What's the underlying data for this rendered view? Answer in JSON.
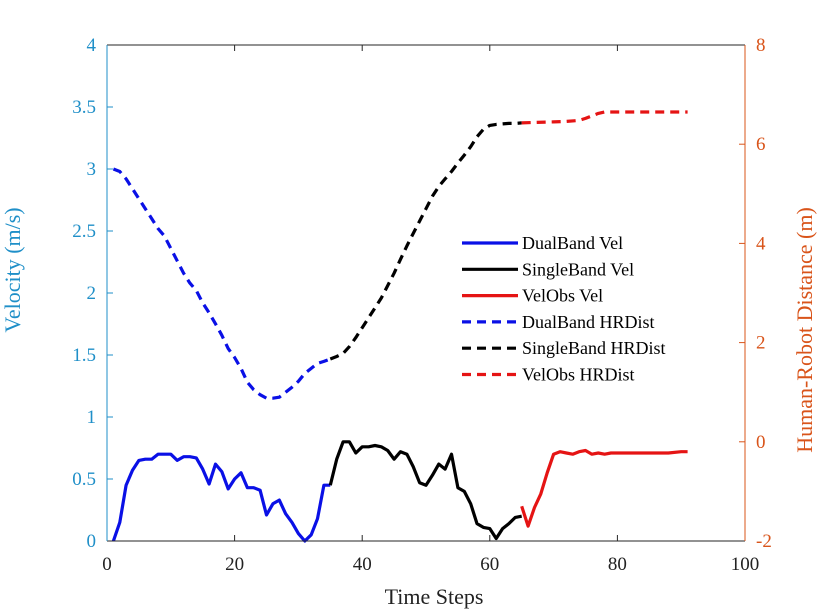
{
  "chart_data": {
    "type": "line",
    "xlabel": "Time Steps",
    "ylabel": "Velocity (m/s)",
    "y2label": "Human-Robot Distance (m)",
    "xlim": [
      0,
      100
    ],
    "ylim": [
      0,
      4
    ],
    "y2lim": [
      -2,
      8
    ],
    "xticks": [
      "0",
      "20",
      "40",
      "60",
      "80",
      "100"
    ],
    "yticks": [
      "0",
      "0.5",
      "1",
      "1.5",
      "2",
      "2.5",
      "3",
      "3.5",
      "4"
    ],
    "y2ticks": [
      "-2",
      "0",
      "2",
      "4",
      "6",
      "8"
    ],
    "colors": {
      "left_axis": "#1f8fc8",
      "right_axis": "#d9541a",
      "dualband": "#0a10e6",
      "singleband": "#000000",
      "velobs": "#e51414"
    },
    "legend_position": "center-right",
    "series": [
      {
        "name": "DualBand Vel",
        "axis": "left",
        "style": "solid",
        "color": "#0a10e6",
        "x": [
          1,
          2,
          3,
          4,
          5,
          6,
          7,
          8,
          9,
          10,
          11,
          12,
          13,
          14,
          15,
          16,
          17,
          18,
          19,
          20,
          21,
          22,
          23,
          24,
          25,
          26,
          27,
          28,
          29,
          30,
          31,
          32,
          33,
          34,
          35
        ],
        "y": [
          0,
          0.15,
          0.45,
          0.57,
          0.65,
          0.66,
          0.66,
          0.7,
          0.7,
          0.7,
          0.65,
          0.68,
          0.68,
          0.67,
          0.58,
          0.46,
          0.62,
          0.56,
          0.42,
          0.5,
          0.55,
          0.43,
          0.43,
          0.41,
          0.21,
          0.3,
          0.33,
          0.22,
          0.15,
          0.06,
          0,
          0.05,
          0.18,
          0.45,
          0.45
        ]
      },
      {
        "name": "SingleBand Vel",
        "axis": "left",
        "style": "solid",
        "color": "#000000",
        "x": [
          35,
          36,
          37,
          38,
          39,
          40,
          41,
          42,
          43,
          44,
          45,
          46,
          47,
          48,
          49,
          50,
          51,
          52,
          53,
          54,
          55,
          56,
          57,
          58,
          59,
          60,
          61,
          62,
          63,
          64,
          65
        ],
        "y": [
          0.45,
          0.66,
          0.8,
          0.8,
          0.71,
          0.76,
          0.76,
          0.77,
          0.76,
          0.73,
          0.66,
          0.72,
          0.7,
          0.6,
          0.47,
          0.45,
          0.53,
          0.62,
          0.58,
          0.7,
          0.43,
          0.4,
          0.3,
          0.14,
          0.11,
          0.1,
          0.02,
          0.1,
          0.14,
          0.19,
          0.2
        ]
      },
      {
        "name": "VelObs Vel",
        "axis": "left",
        "style": "solid",
        "color": "#e51414",
        "x": [
          65,
          66,
          67,
          68,
          69,
          70,
          71,
          72,
          73,
          74,
          75,
          76,
          77,
          78,
          79,
          80,
          82,
          84,
          86,
          88,
          90,
          91
        ],
        "y": [
          0.28,
          0.12,
          0.27,
          0.38,
          0.55,
          0.7,
          0.72,
          0.71,
          0.7,
          0.72,
          0.73,
          0.7,
          0.71,
          0.7,
          0.71,
          0.71,
          0.71,
          0.71,
          0.71,
          0.71,
          0.72,
          0.72
        ]
      },
      {
        "name": "DualBand HRDist",
        "axis": "right",
        "style": "dashed",
        "color": "#0a10e6",
        "x": [
          1,
          2,
          3,
          4,
          5,
          6,
          7,
          8,
          9,
          10,
          11,
          12,
          13,
          14,
          15,
          16,
          17,
          18,
          19,
          20,
          21,
          22,
          23,
          24,
          25,
          26,
          27,
          28,
          29,
          30,
          31,
          32,
          33,
          34,
          35
        ],
        "y": [
          5.5,
          5.45,
          5.3,
          5.1,
          4.9,
          4.7,
          4.5,
          4.3,
          4.15,
          3.9,
          3.65,
          3.4,
          3.2,
          3.05,
          2.8,
          2.6,
          2.38,
          2.15,
          1.88,
          1.7,
          1.48,
          1.2,
          1.05,
          0.95,
          0.88,
          0.88,
          0.9,
          1,
          1.1,
          1.22,
          1.38,
          1.48,
          1.58,
          1.62,
          1.67
        ]
      },
      {
        "name": "SingleBand HRDist",
        "axis": "right",
        "style": "dashed",
        "color": "#000000",
        "x": [
          35,
          36,
          37,
          38,
          39,
          40,
          41,
          42,
          43,
          44,
          45,
          46,
          47,
          48,
          49,
          50,
          51,
          52,
          53,
          54,
          55,
          56,
          57,
          58,
          59,
          60,
          61,
          62,
          63,
          64,
          65
        ],
        "y": [
          1.67,
          1.72,
          1.78,
          1.92,
          2.1,
          2.3,
          2.5,
          2.7,
          2.9,
          3.15,
          3.4,
          3.68,
          3.95,
          4.2,
          4.45,
          4.7,
          4.95,
          5.15,
          5.3,
          5.45,
          5.62,
          5.78,
          5.95,
          6.15,
          6.3,
          6.38,
          6.4,
          6.41,
          6.42,
          6.42,
          6.43
        ]
      },
      {
        "name": "VelObs HRDist",
        "axis": "right",
        "style": "dashed",
        "color": "#e51414",
        "x": [
          65,
          67,
          70,
          72,
          74,
          75,
          76,
          77,
          78,
          80,
          84,
          88,
          91
        ],
        "y": [
          6.43,
          6.44,
          6.45,
          6.46,
          6.48,
          6.52,
          6.57,
          6.62,
          6.65,
          6.65,
          6.65,
          6.65,
          6.65
        ]
      }
    ]
  }
}
